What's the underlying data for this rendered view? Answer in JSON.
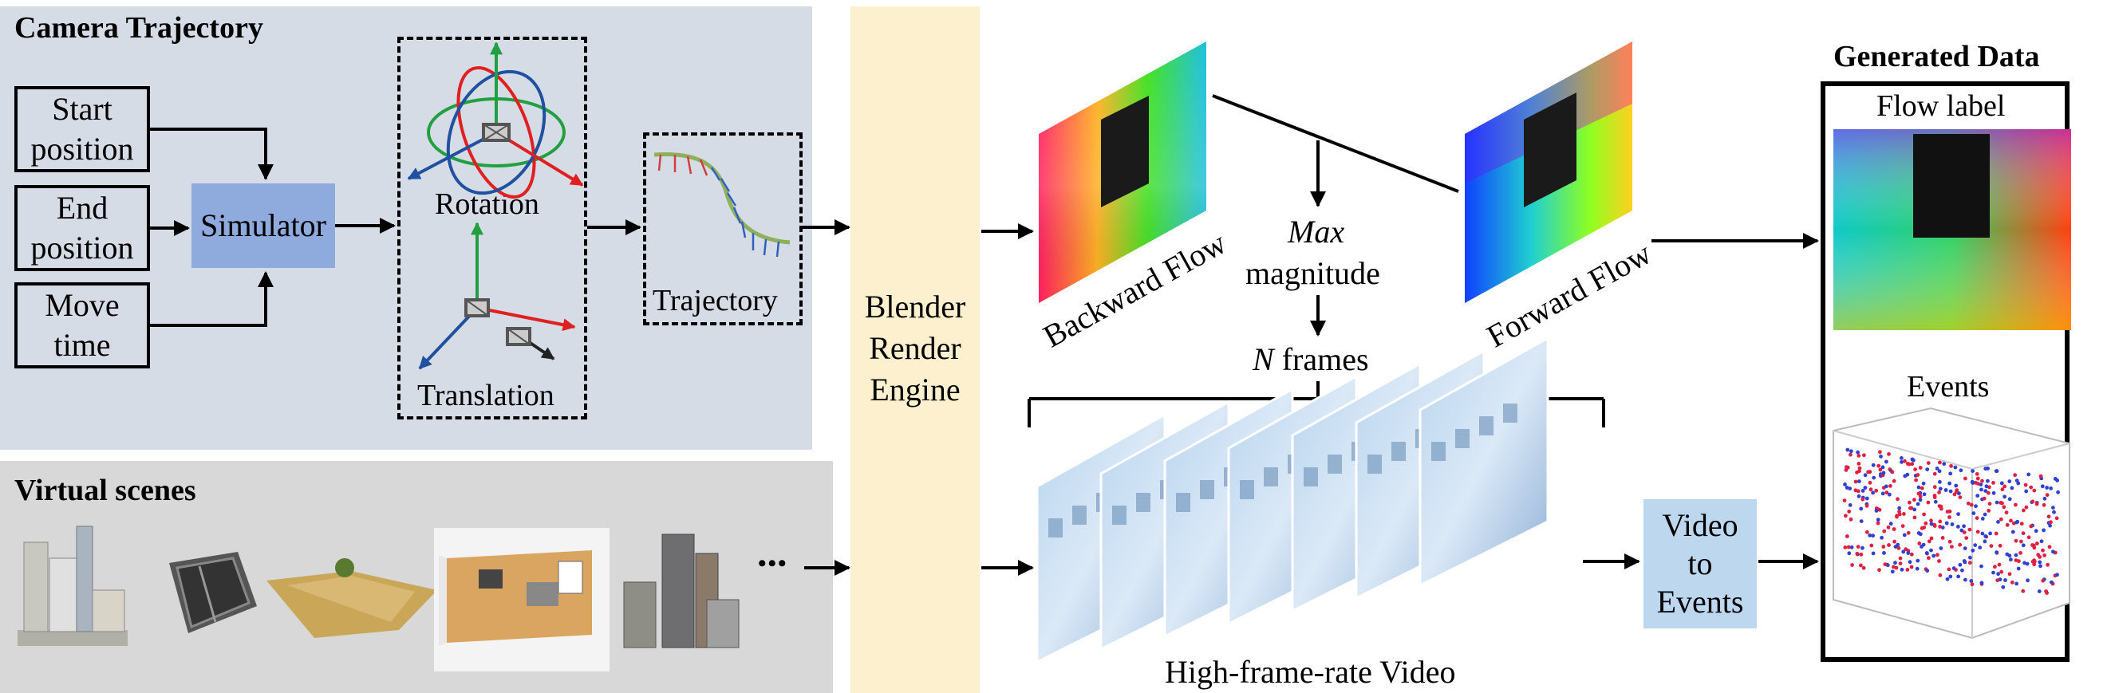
{
  "camera": {
    "title": "Camera Trajectory",
    "start_label": "Start position",
    "end_label": "End position",
    "move_label": "Move time",
    "simulator_label": "Simulator",
    "rotation_label": "Rotation",
    "translation_label": "Translation",
    "trajectory_label": "Trajectory"
  },
  "scenes": {
    "title": "Virtual scenes",
    "more": "•••"
  },
  "render": {
    "label": "Blender Render Engine",
    "line1": "Blender",
    "line2": "Render",
    "line3": "Engine"
  },
  "flow": {
    "backward_label": "Backward Flow",
    "forward_label": "Forward Flow",
    "max_label": "Max",
    "magnitude_label": "magnitude",
    "n_label": "N",
    "frames_label": "frames"
  },
  "video": {
    "caption": "High-frame-rate Video",
    "v2e_line1": "Video",
    "v2e_line2": "to",
    "v2e_line3": "Events"
  },
  "generated": {
    "title": "Generated Data",
    "flow_label": "Flow label",
    "events_label": "Events"
  },
  "colors": {
    "camera_bg": "#d6dce6",
    "scenes_bg": "#d8d8d8",
    "render_bg": "#fdf0cf",
    "simulator_bg": "#8faadc",
    "v2e_bg": "#bdd7ee"
  }
}
